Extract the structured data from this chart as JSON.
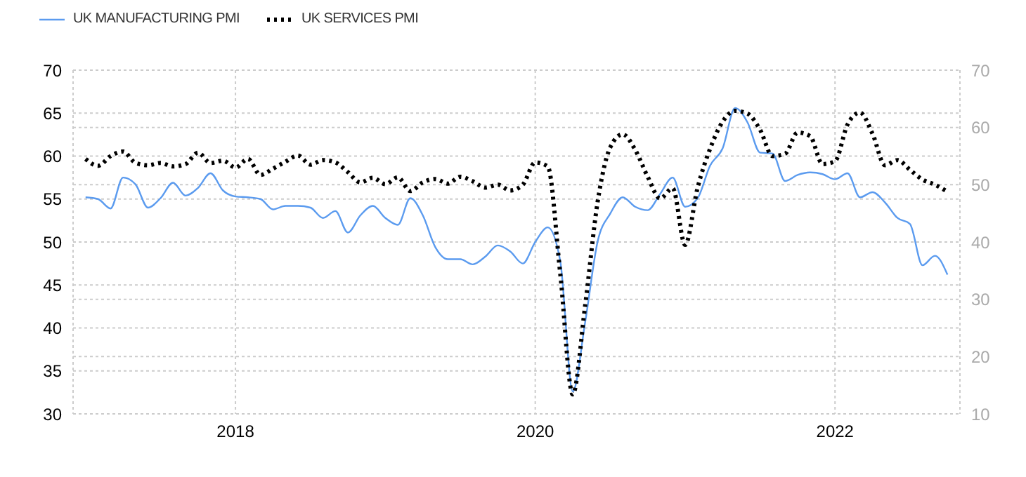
{
  "chart_data": {
    "type": "line",
    "x": [
      "2017-01",
      "2017-02",
      "2017-03",
      "2017-04",
      "2017-05",
      "2017-06",
      "2017-07",
      "2017-08",
      "2017-09",
      "2017-10",
      "2017-11",
      "2017-12",
      "2018-01",
      "2018-02",
      "2018-03",
      "2018-04",
      "2018-05",
      "2018-06",
      "2018-07",
      "2018-08",
      "2018-09",
      "2018-10",
      "2018-11",
      "2018-12",
      "2019-01",
      "2019-02",
      "2019-03",
      "2019-04",
      "2019-05",
      "2019-06",
      "2019-07",
      "2019-08",
      "2019-09",
      "2019-10",
      "2019-11",
      "2019-12",
      "2020-01",
      "2020-02",
      "2020-03",
      "2020-04",
      "2020-05",
      "2020-06",
      "2020-07",
      "2020-08",
      "2020-09",
      "2020-10",
      "2020-11",
      "2020-12",
      "2021-01",
      "2021-02",
      "2021-03",
      "2021-04",
      "2021-05",
      "2021-06",
      "2021-07",
      "2021-08",
      "2021-09",
      "2021-10",
      "2021-11",
      "2021-12",
      "2022-01",
      "2022-02",
      "2022-03",
      "2022-04",
      "2022-05",
      "2022-06",
      "2022-07",
      "2022-08",
      "2022-09",
      "2022-10"
    ],
    "series": [
      {
        "name": "UK MANUFACTURING PMI",
        "color": "#5b9bef",
        "line_style": "solid",
        "values": [
          55.2,
          55.0,
          53.9,
          57.5,
          56.7,
          54.0,
          55.1,
          56.9,
          55.4,
          56.3,
          58.0,
          56.0,
          55.3,
          55.2,
          55.0,
          53.8,
          54.2,
          54.2,
          54.0,
          52.8,
          53.6,
          51.1,
          53.1,
          54.2,
          52.8,
          52.0,
          55.1,
          53.1,
          49.4,
          48.0,
          48.0,
          47.4,
          48.3,
          49.6,
          48.9,
          47.5,
          50.0,
          51.7,
          47.8,
          32.6,
          40.7,
          50.1,
          53.3,
          55.2,
          54.1,
          53.7,
          55.6,
          57.5,
          54.1,
          55.1,
          58.9,
          60.9,
          65.6,
          63.9,
          60.4,
          60.3,
          57.1,
          57.8,
          58.1,
          57.9,
          57.3,
          58.0,
          55.2,
          55.8,
          54.6,
          52.8,
          52.1,
          47.3,
          48.4,
          46.2
        ]
      },
      {
        "name": "UK SERVICES PMI",
        "color": "#000000",
        "line_style": "dotted",
        "axis": "y2",
        "values": [
          54.5,
          53.3,
          55.0,
          55.8,
          53.8,
          53.4,
          53.8,
          53.2,
          53.6,
          55.6,
          53.8,
          54.2,
          53.0,
          54.5,
          51.7,
          52.8,
          54.0,
          55.1,
          53.5,
          54.3,
          53.9,
          52.2,
          50.4,
          51.2,
          50.1,
          51.3,
          48.9,
          50.4,
          51.0,
          50.2,
          51.4,
          50.6,
          49.5,
          50.0,
          49.0,
          50.0,
          53.9,
          53.2,
          34.5,
          13.4,
          29.0,
          47.1,
          56.5,
          58.8,
          56.1,
          51.4,
          47.6,
          49.4,
          39.5,
          49.5,
          56.3,
          61.0,
          62.9,
          62.4,
          59.6,
          55.0,
          55.4,
          59.1,
          58.5,
          53.6,
          54.1,
          60.5,
          62.6,
          58.9,
          53.4,
          54.3,
          52.6,
          50.9,
          50.0,
          48.8
        ]
      }
    ],
    "xlim": [
      "2016-12",
      "2022-11"
    ],
    "xticks": [
      "2018",
      "2020",
      "2022"
    ],
    "ylim": [
      30,
      70
    ],
    "yticks": [
      30,
      35,
      40,
      45,
      50,
      55,
      60,
      65,
      70
    ],
    "y2lim": [
      10,
      70
    ],
    "y2ticks": [
      10,
      20,
      30,
      40,
      50,
      60,
      70
    ],
    "grid": true,
    "legend": "top left",
    "marker": "none"
  }
}
